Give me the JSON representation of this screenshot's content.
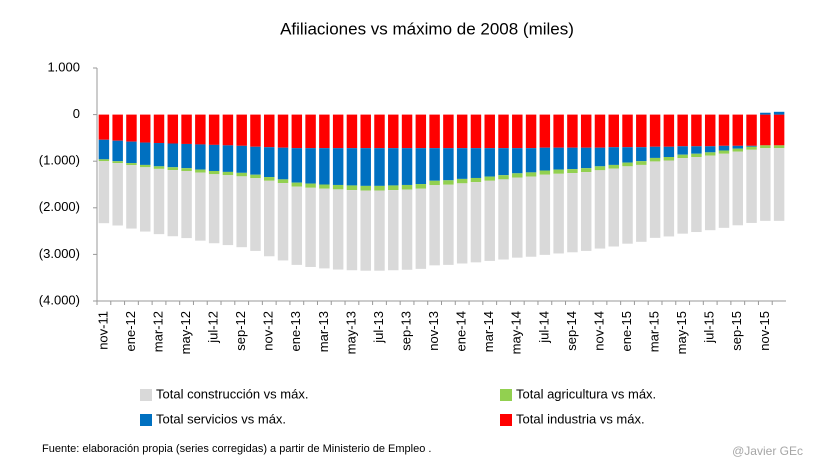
{
  "chart_data": {
    "type": "stacked-bar",
    "title": "Afiliaciones vs máximo de 2008 (miles)",
    "categories": [
      "nov-11",
      null,
      "ene-12",
      null,
      "mar-12",
      null,
      "may-12",
      null,
      "jul-12",
      null,
      "sep-12",
      null,
      "nov-12",
      null,
      "ene-13",
      null,
      "mar-13",
      null,
      "may-13",
      null,
      "jul-13",
      null,
      "sep-13",
      null,
      "nov-13",
      null,
      "ene-14",
      null,
      "mar-14",
      null,
      "may-14",
      null,
      "jul-14",
      null,
      "sep-14",
      null,
      "nov-14",
      null,
      "ene-15",
      null,
      "mar-15",
      null,
      "may-15",
      null,
      "jul-15",
      null,
      "sep-15",
      null,
      "nov-15",
      null
    ],
    "series": [
      {
        "name": "Total construcción vs máx.",
        "color": "#d9d9d9",
        "values": [
          -1330,
          -1340,
          -1360,
          -1380,
          -1400,
          -1420,
          -1440,
          -1460,
          -1480,
          -1500,
          -1520,
          -1560,
          -1620,
          -1660,
          -1680,
          -1700,
          -1710,
          -1720,
          -1720,
          -1720,
          -1720,
          -1720,
          -1720,
          -1720,
          -1720,
          -1720,
          -1720,
          -1720,
          -1720,
          -1720,
          -1720,
          -1720,
          -1720,
          -1710,
          -1700,
          -1690,
          -1680,
          -1670,
          -1660,
          -1650,
          -1640,
          -1630,
          -1620,
          -1610,
          -1600,
          -1590,
          -1580,
          -1570,
          -1560,
          -1560
        ]
      },
      {
        "name": "Total agricultura vs máx.",
        "color": "#92d050",
        "values": [
          -40,
          -40,
          -45,
          -50,
          -55,
          -60,
          -60,
          -65,
          -70,
          -70,
          -75,
          -75,
          -80,
          -80,
          -85,
          -90,
          -90,
          -95,
          -100,
          -100,
          -100,
          -100,
          -100,
          -100,
          -95,
          -95,
          -95,
          -90,
          -90,
          -90,
          -90,
          -90,
          -90,
          -90,
          -85,
          -85,
          -85,
          -80,
          -80,
          -80,
          -75,
          -75,
          -75,
          -70,
          -70,
          -70,
          -65,
          -65,
          -60,
          -60
        ]
      },
      {
        "name": "Total servicios vs máx.",
        "color": "#0070c0",
        "values": [
          -420,
          -440,
          -460,
          -480,
          -500,
          -510,
          -520,
          -540,
          -560,
          -570,
          -580,
          -600,
          -640,
          -680,
          -740,
          -760,
          -780,
          -790,
          -800,
          -810,
          -810,
          -800,
          -790,
          -770,
          -700,
          -690,
          -660,
          -640,
          -610,
          -580,
          -540,
          -520,
          -490,
          -470,
          -460,
          -440,
          -400,
          -380,
          -330,
          -300,
          -240,
          -220,
          -180,
          -160,
          -130,
          -100,
          -60,
          -20,
          40,
          60
        ]
      },
      {
        "name": "Total industria vs máx.",
        "color": "#ff0000",
        "values": [
          -540,
          -560,
          -580,
          -600,
          -610,
          -620,
          -630,
          -640,
          -650,
          -660,
          -670,
          -690,
          -700,
          -710,
          -720,
          -720,
          -720,
          -720,
          -720,
          -720,
          -720,
          -720,
          -720,
          -720,
          -720,
          -720,
          -720,
          -720,
          -720,
          -720,
          -720,
          -720,
          -710,
          -710,
          -710,
          -710,
          -710,
          -700,
          -700,
          -700,
          -690,
          -690,
          -680,
          -680,
          -680,
          -670,
          -670,
          -670,
          -660,
          -660
        ]
      }
    ],
    "ylim": [
      -4000,
      1000
    ],
    "yticks": [
      {
        "value": 1000,
        "label": "1.000"
      },
      0,
      {
        "value": -1000,
        "label": "(1.000)"
      },
      {
        "value": -2000,
        "label": "(2.000)"
      },
      {
        "value": -3000,
        "label": "(3.000)"
      },
      {
        "value": -4000,
        "label": "(4.000)"
      }
    ],
    "source": "Fuente: elaboración propia (series corregidas) a partir de Ministerio de Empleo .",
    "credit": "@Javier GEc"
  }
}
